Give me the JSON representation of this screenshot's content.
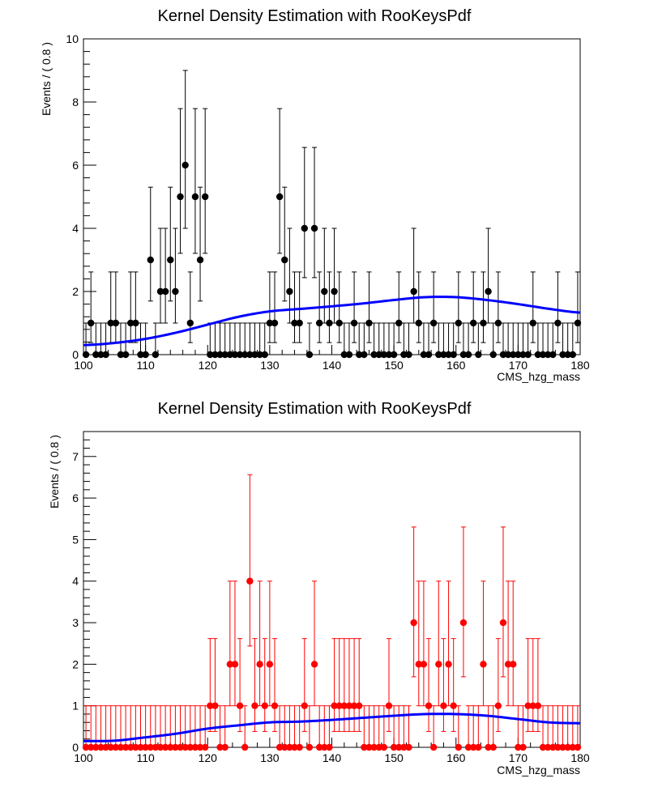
{
  "chart_data": [
    {
      "type": "scatter",
      "title": "Kernel Density Estimation with RooKeysPdf",
      "xlabel": "CMS_hzg_mass",
      "ylabel": "Events / ( 0.8 )",
      "xlim": [
        100,
        180
      ],
      "ylim": [
        0,
        10
      ],
      "xticks": [
        "100",
        "110",
        "120",
        "130",
        "140",
        "150",
        "160",
        "170",
        "180"
      ],
      "yticks": [
        "0",
        "2",
        "4",
        "6",
        "8",
        "10"
      ],
      "bin_width": 0.8,
      "marker_color": "#000000",
      "curve_color": "#0000ff",
      "grid": false,
      "points": [
        [
          101.2,
          1
        ],
        [
          104.4,
          1
        ],
        [
          105.2,
          1
        ],
        [
          107.6,
          1
        ],
        [
          108.4,
          1
        ],
        [
          110.8,
          3
        ],
        [
          112.4,
          2
        ],
        [
          113.2,
          2
        ],
        [
          114.0,
          3
        ],
        [
          114.8,
          2
        ],
        [
          115.6,
          5
        ],
        [
          116.4,
          6
        ],
        [
          117.2,
          1
        ],
        [
          118.0,
          5
        ],
        [
          118.8,
          3
        ],
        [
          119.6,
          5
        ],
        [
          130.0,
          1
        ],
        [
          130.8,
          1
        ],
        [
          131.6,
          5
        ],
        [
          132.4,
          3
        ],
        [
          133.2,
          2
        ],
        [
          134.0,
          1
        ],
        [
          134.8,
          1
        ],
        [
          135.6,
          4
        ],
        [
          137.2,
          4
        ],
        [
          138.0,
          1
        ],
        [
          138.8,
          2
        ],
        [
          139.6,
          1
        ],
        [
          140.4,
          2
        ],
        [
          141.2,
          1
        ],
        [
          143.6,
          1
        ],
        [
          146.0,
          1
        ],
        [
          150.8,
          1
        ],
        [
          153.2,
          2
        ],
        [
          154.0,
          1
        ],
        [
          156.4,
          1
        ],
        [
          160.4,
          1
        ],
        [
          162.8,
          1
        ],
        [
          164.4,
          1
        ],
        [
          165.2,
          2
        ],
        [
          166.8,
          1
        ],
        [
          172.4,
          1
        ],
        [
          176.4,
          1
        ],
        [
          179.6,
          1
        ]
      ],
      "curve": {
        "x": [
          100,
          105,
          110,
          115,
          120,
          125,
          130,
          135,
          140,
          145,
          150,
          155,
          160,
          165,
          170,
          175,
          180
        ],
        "y": [
          0.3,
          0.37,
          0.5,
          0.7,
          0.95,
          1.2,
          1.37,
          1.45,
          1.53,
          1.62,
          1.73,
          1.82,
          1.82,
          1.73,
          1.6,
          1.45,
          1.33
        ]
      }
    },
    {
      "type": "scatter",
      "title": "Kernel Density Estimation with RooKeysPdf",
      "xlabel": "CMS_hzg_mass",
      "ylabel": "Events / ( 0.8 )",
      "xlim": [
        100,
        180
      ],
      "ylim": [
        0,
        7.6
      ],
      "xticks": [
        "100",
        "110",
        "120",
        "130",
        "140",
        "150",
        "160",
        "170",
        "180"
      ],
      "yticks": [
        "0",
        "1",
        "2",
        "3",
        "4",
        "5",
        "6",
        "7"
      ],
      "bin_width": 0.8,
      "marker_color": "#ff0000",
      "curve_color": "#0000ff",
      "grid": false,
      "points": [
        [
          120.4,
          1
        ],
        [
          121.2,
          1
        ],
        [
          123.6,
          2
        ],
        [
          124.4,
          2
        ],
        [
          125.2,
          1
        ],
        [
          126.8,
          4
        ],
        [
          127.6,
          1
        ],
        [
          128.4,
          2
        ],
        [
          129.2,
          1
        ],
        [
          130.0,
          2
        ],
        [
          130.8,
          1
        ],
        [
          135.6,
          1
        ],
        [
          137.2,
          2
        ],
        [
          140.4,
          1
        ],
        [
          141.2,
          1
        ],
        [
          142.0,
          1
        ],
        [
          142.8,
          1
        ],
        [
          143.6,
          1
        ],
        [
          144.4,
          1
        ],
        [
          149.2,
          1
        ],
        [
          153.2,
          3
        ],
        [
          154.0,
          2
        ],
        [
          154.8,
          2
        ],
        [
          155.6,
          1
        ],
        [
          157.2,
          2
        ],
        [
          158.0,
          1
        ],
        [
          158.8,
          2
        ],
        [
          159.6,
          1
        ],
        [
          161.2,
          3
        ],
        [
          164.4,
          2
        ],
        [
          166.8,
          1
        ],
        [
          167.6,
          3
        ],
        [
          168.4,
          2
        ],
        [
          169.2,
          2
        ],
        [
          171.6,
          1
        ],
        [
          172.4,
          1
        ],
        [
          173.2,
          1
        ]
      ],
      "curve": {
        "x": [
          100,
          105,
          110,
          115,
          120,
          125,
          130,
          135,
          140,
          145,
          150,
          155,
          160,
          165,
          170,
          175,
          180
        ],
        "y": [
          0.15,
          0.16,
          0.24,
          0.33,
          0.45,
          0.53,
          0.6,
          0.62,
          0.66,
          0.71,
          0.76,
          0.8,
          0.8,
          0.76,
          0.68,
          0.6,
          0.58
        ]
      }
    }
  ]
}
